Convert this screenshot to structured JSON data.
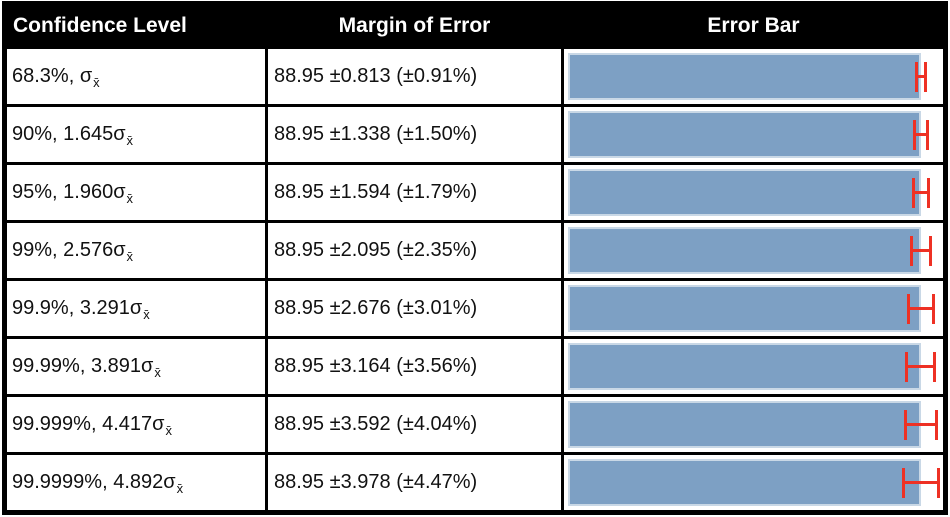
{
  "table": {
    "headers": [
      "Confidence Level",
      "Margin of Error",
      "Error Bar"
    ],
    "rows": [
      {
        "confidence": "68.3%, σ",
        "confidence_sub": "x̄",
        "margin_text": "88.95 ±0.813 (±0.91%)",
        "value": 88.95,
        "margin": 0.813
      },
      {
        "confidence": "90%, 1.645σ",
        "confidence_sub": "x̄",
        "margin_text": "88.95 ±1.338 (±1.50%)",
        "value": 88.95,
        "margin": 1.338
      },
      {
        "confidence": "95%, 1.960σ",
        "confidence_sub": "x̄",
        "margin_text": "88.95 ±1.594 (±1.79%)",
        "value": 88.95,
        "margin": 1.594
      },
      {
        "confidence": "99%, 2.576σ",
        "confidence_sub": "x̄",
        "margin_text": "88.95 ±2.095 (±2.35%)",
        "value": 88.95,
        "margin": 2.095
      },
      {
        "confidence": "99.9%, 3.291σ",
        "confidence_sub": "x̄",
        "margin_text": "88.95 ±2.676 (±3.01%)",
        "value": 88.95,
        "margin": 2.676
      },
      {
        "confidence": "99.99%, 3.891σ",
        "confidence_sub": "x̄",
        "margin_text": "88.95 ±3.164 (±3.56%)",
        "value": 88.95,
        "margin": 3.164
      },
      {
        "confidence": "99.999%, 4.417σ",
        "confidence_sub": "x̄",
        "margin_text": "88.95 ±3.592 (±4.04%)",
        "value": 88.95,
        "margin": 3.592
      },
      {
        "confidence": "99.9999%, 4.892σ",
        "confidence_sub": "x̄",
        "margin_text": "88.95 ±3.978 (±4.47%)",
        "value": 88.95,
        "margin": 3.978
      }
    ]
  },
  "colors": {
    "header_bg": "#000000",
    "header_text": "#ffffff",
    "grid": "#000000",
    "cell_bg": "#ffffff",
    "cell_text": "#111111",
    "bar_fill": "#7da0c4",
    "bar_border": "#c9d8e6",
    "error_bar": "#ee3124"
  },
  "chart_data": {
    "type": "bar",
    "orientation": "horizontal",
    "title": "Error Bar",
    "columns": [
      "Confidence Level",
      "Margin of Error",
      "Error Bar"
    ],
    "categories": [
      "68.3%, σx̄",
      "90%, 1.645σx̄",
      "95%, 1.960σx̄",
      "99%, 2.576σx̄",
      "99.9%, 3.291σx̄",
      "99.99%, 3.891σx̄",
      "99.999%, 4.417σx̄",
      "99.9999%, 4.892σx̄"
    ],
    "values": [
      88.95,
      88.95,
      88.95,
      88.95,
      88.95,
      88.95,
      88.95,
      88.95
    ],
    "error_margins": [
      0.813,
      1.338,
      1.594,
      2.095,
      2.676,
      3.164,
      3.592,
      3.978
    ],
    "error_margins_pct": [
      "±0.91%",
      "±1.50%",
      "±1.79%",
      "±2.35%",
      "±3.01%",
      "±3.56%",
      "±4.04%",
      "±4.47%"
    ],
    "xlim": [
      0,
      93.5
    ],
    "grid": false,
    "legend": false
  }
}
